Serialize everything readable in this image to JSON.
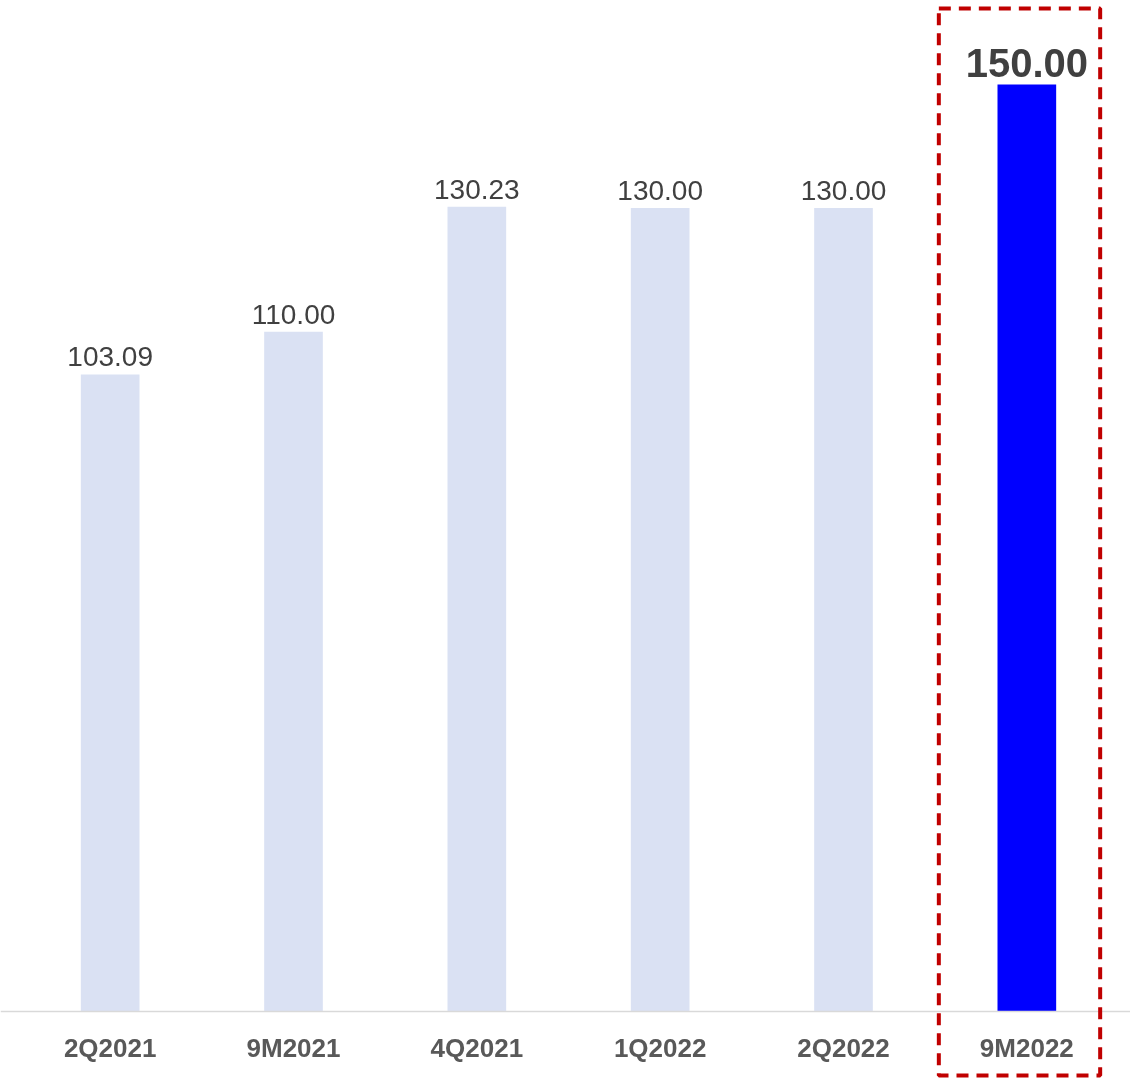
{
  "chart_data": {
    "type": "bar",
    "categories": [
      "2Q2021",
      "9M2021",
      "4Q2021",
      "1Q2022",
      "2Q2022",
      "9M2022"
    ],
    "values": [
      103.09,
      110.0,
      130.23,
      130.0,
      130.0,
      150.0
    ],
    "colors": [
      "#dae1f3",
      "#dae1f3",
      "#dae1f3",
      "#dae1f3",
      "#dae1f3",
      "#0000ff"
    ],
    "value_labels": [
      "103.09",
      "110.00",
      "130.23",
      "130.00",
      "130.00",
      "150.00"
    ],
    "grid": false
  }
}
